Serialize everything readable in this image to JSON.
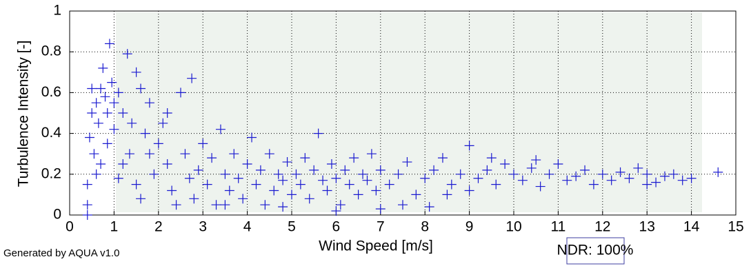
{
  "chart_data": {
    "type": "scatter",
    "x_label": "Wind Speed [m/s]",
    "y_label": "Turbulence Intensity [-]",
    "footer": "Generated by AQUA v1.0",
    "annotation": "NDR: 100%",
    "color": "#1a1ad0",
    "grid": true,
    "xlim": [
      0,
      15
    ],
    "ylim": [
      0,
      1
    ],
    "xticks": [
      0,
      1,
      2,
      3,
      4,
      5,
      6,
      7,
      8,
      9,
      10,
      11,
      12,
      13,
      14,
      15
    ],
    "yticks": [
      0,
      0.2,
      0.4,
      0.6,
      0.8,
      1
    ],
    "x": [
      0.4,
      0.4,
      0.45,
      0.5,
      0.55,
      0.6,
      0.65,
      0.7,
      0.75,
      0.8,
      0.85,
      0.9,
      0.95,
      1.0,
      0.4,
      0.5,
      0.7,
      0.85,
      1.0,
      0.6,
      1.1,
      1.2,
      1.3,
      1.35,
      1.4,
      1.5,
      1.6,
      1.7,
      1.8,
      1.9,
      1.2,
      1.5,
      1.8,
      2.0,
      1.1,
      1.6,
      2.1,
      2.2,
      2.3,
      2.5,
      2.6,
      2.7,
      2.8,
      2.9,
      3.0,
      2.4,
      2.2,
      2.75,
      3.1,
      3.2,
      3.3,
      3.4,
      3.5,
      3.6,
      3.7,
      3.8,
      3.9,
      4.0,
      4.1,
      4.2,
      4.3,
      4.4,
      4.5,
      4.6,
      4.7,
      4.8,
      4.9,
      5.0,
      3.5,
      4.8,
      5.1,
      5.2,
      5.3,
      5.4,
      5.5,
      5.6,
      5.7,
      5.8,
      5.9,
      6.0,
      6.1,
      6.2,
      6.3,
      6.4,
      6.5,
      6.6,
      6.7,
      6.8,
      6.9,
      7.0,
      6.0,
      7.0,
      7.2,
      7.4,
      7.6,
      7.8,
      8.0,
      8.2,
      8.4,
      8.6,
      8.8,
      9.0,
      7.5,
      8.1,
      8.5,
      9.0,
      9.2,
      9.4,
      9.6,
      9.8,
      10.0,
      10.2,
      10.4,
      10.6,
      10.8,
      11.0,
      11.2,
      11.4,
      11.6,
      11.8,
      12.0,
      10.5,
      9.5,
      12.2,
      12.4,
      12.6,
      12.8,
      13.0,
      13.2,
      13.4,
      13.6,
      13.8,
      14.0,
      14.6,
      13.0
    ],
    "values": [
      0.05,
      0.15,
      0.38,
      0.5,
      0.3,
      0.55,
      0.45,
      0.62,
      0.72,
      0.58,
      0.5,
      0.84,
      0.65,
      0.55,
      0.0,
      0.62,
      0.25,
      0.35,
      0.42,
      0.2,
      0.6,
      0.5,
      0.79,
      0.3,
      0.45,
      0.7,
      0.62,
      0.4,
      0.3,
      0.2,
      0.25,
      0.15,
      0.55,
      0.35,
      0.18,
      0.08,
      0.45,
      0.25,
      0.12,
      0.6,
      0.3,
      0.18,
      0.08,
      0.22,
      0.35,
      0.05,
      0.5,
      0.67,
      0.15,
      0.28,
      0.05,
      0.42,
      0.2,
      0.12,
      0.3,
      0.18,
      0.08,
      0.25,
      0.38,
      0.15,
      0.22,
      0.05,
      0.3,
      0.12,
      0.2,
      0.17,
      0.26,
      0.1,
      0.05,
      0.04,
      0.2,
      0.15,
      0.28,
      0.08,
      0.22,
      0.4,
      0.17,
      0.12,
      0.25,
      0.18,
      0.05,
      0.22,
      0.15,
      0.28,
      0.1,
      0.2,
      0.17,
      0.3,
      0.12,
      0.22,
      0.02,
      0.03,
      0.15,
      0.2,
      0.26,
      0.1,
      0.18,
      0.22,
      0.28,
      0.15,
      0.2,
      0.34,
      0.05,
      0.04,
      0.1,
      0.12,
      0.18,
      0.22,
      0.15,
      0.25,
      0.2,
      0.17,
      0.23,
      0.14,
      0.2,
      0.25,
      0.17,
      0.19,
      0.22,
      0.15,
      0.2,
      0.27,
      0.28,
      0.17,
      0.21,
      0.18,
      0.23,
      0.2,
      0.16,
      0.19,
      0.2,
      0.17,
      0.18,
      0.21,
      0.15
    ]
  }
}
